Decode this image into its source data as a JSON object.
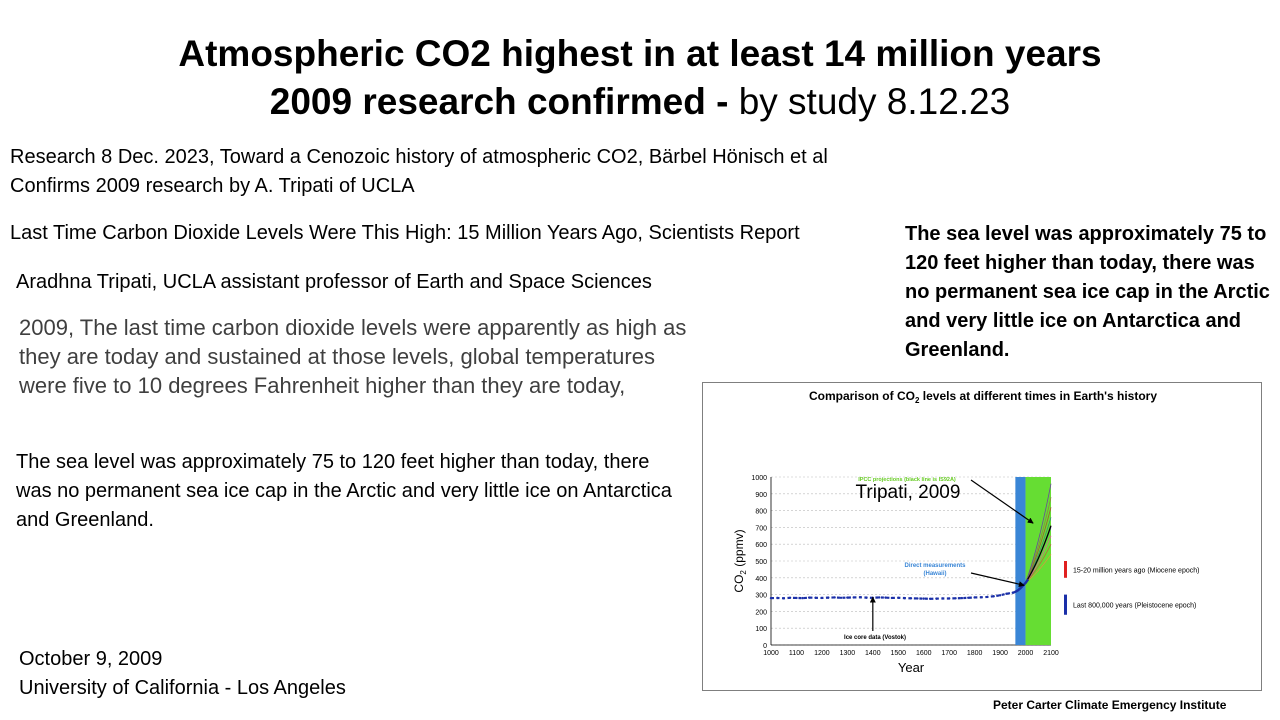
{
  "title": {
    "line1": "Atmospheric CO2 highest in at least 14 million years",
    "line2_bold": "2009 research confirmed -",
    "line2_normal": "by study 8.12.23"
  },
  "body": {
    "research_line1": "Research 8 Dec. 2023, Toward a Cenozoic history of atmospheric CO2, Bärbel Hönisch et al",
    "research_line2": "Confirms 2009 research by A. Tripati of UCLA",
    "headline": "Last Time Carbon Dioxide Levels Were This High: 15 Million Years Ago, Scientists Report",
    "author": "Aradhna Tripati, UCLA assistant professor of Earth and Space Sciences",
    "quote": "2009, The last time carbon dioxide levels were apparently as high as they are today and sustained at those levels, global temperatures were five to 10 degrees Fahrenheit higher than they are today,",
    "sea_level": "The sea level was approximately 75 to 120 feet higher than today, there was no permanent sea ice cap in the Arctic and very little ice on Antarctica and Greenland.",
    "sea_level_bold": "The sea level was approximately 75 to 120 feet higher than today, there was no permanent sea ice cap in the Arctic and very little ice on Antarctica and Greenland."
  },
  "footer": {
    "date": "October 9, 2009",
    "institution": "University of California - Los Angeles",
    "credit": "Peter Carter Climate Emergency Institute"
  },
  "chart_data": {
    "type": "line",
    "title_prefix": "Comparison of CO",
    "title_sub": "2",
    "title_suffix": " levels at different times in Earth's history",
    "ylabel_prefix": "CO",
    "ylabel_sub": "2",
    "ylabel_suffix": " (ppmv)",
    "xlabel": "Year",
    "overlay_text": "Tripati, 2009",
    "xlim": [
      1000,
      2100
    ],
    "ylim": [
      0,
      1000
    ],
    "x_ticks": [
      1000,
      1100,
      1200,
      1300,
      1400,
      1500,
      1600,
      1700,
      1800,
      1900,
      2000,
      2100
    ],
    "y_ticks": [
      0,
      100,
      200,
      300,
      400,
      500,
      600,
      700,
      800,
      900,
      1000
    ],
    "grid": true,
    "colors": {
      "ice_core": "#1a2fa8",
      "blue_band": "#3a86d6",
      "green_band": "#66dd33",
      "miocene": "#e02020",
      "pleistocene": "#1a2fa8"
    },
    "ice_core_series": {
      "x": [
        1000,
        1025,
        1050,
        1075,
        1100,
        1125,
        1150,
        1175,
        1200,
        1225,
        1250,
        1275,
        1300,
        1325,
        1350,
        1375,
        1400,
        1425,
        1450,
        1475,
        1500,
        1525,
        1550,
        1575,
        1600,
        1625,
        1650,
        1675,
        1700,
        1725,
        1750,
        1775,
        1800,
        1825,
        1850,
        1875,
        1900,
        1925,
        1950
      ],
      "y": [
        279,
        280,
        278,
        281,
        280,
        279,
        282,
        281,
        280,
        282,
        283,
        281,
        282,
        283,
        284,
        282,
        281,
        283,
        282,
        280,
        281,
        279,
        278,
        277,
        276,
        275,
        276,
        277,
        277,
        278,
        279,
        281,
        283,
        284,
        286,
        290,
        296,
        305,
        311
      ]
    },
    "direct_series": {
      "x": [
        1958,
        1970,
        1980,
        1990,
        2000,
        2005,
        2010
      ],
      "y": [
        315,
        325,
        338,
        354,
        369,
        380,
        390
      ]
    },
    "projections": {
      "start": [
        2000,
        370
      ],
      "end_x": 2100,
      "end_values": [
        540,
        600,
        650,
        700,
        760,
        820,
        880,
        960
      ],
      "is92a_end": 710
    },
    "bands": [
      {
        "label": "Last 800,000 years (Pleistocene epoch)",
        "range": [
          180,
          300
        ]
      },
      {
        "label": "15-20 million years ago (Miocene epoch)",
        "range": [
          400,
          500
        ]
      }
    ],
    "annotations": {
      "ipcc": "IPCC projections (black line is IS92A)",
      "direct": "Direct measurements",
      "direct_sub": "(Hawaii)",
      "ice": "Ice core data (Vostok)"
    }
  }
}
